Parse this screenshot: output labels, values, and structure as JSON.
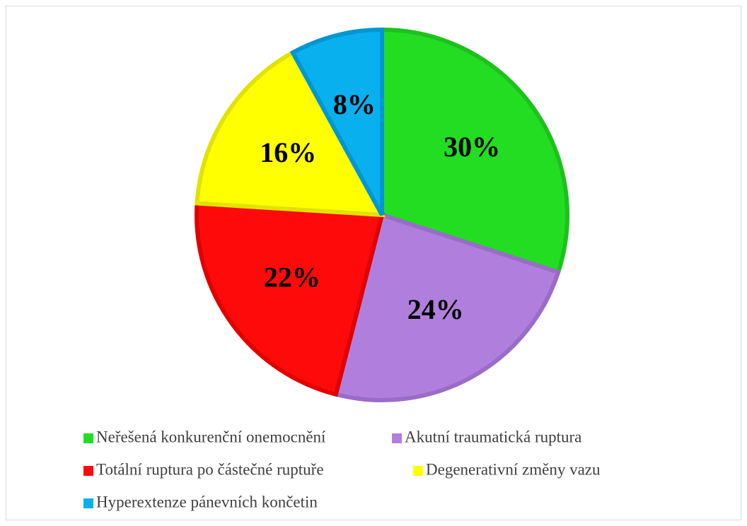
{
  "chart_data": {
    "type": "pie",
    "categories": [
      "Neřešená konkurenční onemocnění",
      "Akutní traumatická ruptura",
      "Totální ruptura po částečné ruptuře",
      "Degenerativní změny vazu",
      "Hyperextenze pánevních končetin"
    ],
    "values": [
      30,
      24,
      22,
      16,
      8
    ],
    "value_labels": [
      "30%",
      "24%",
      "22%",
      "16%",
      "8%"
    ],
    "colors": [
      "#22dd22",
      "#b07fdd",
      "#ff0a0a",
      "#ffff00",
      "#08b0ee"
    ],
    "edge_colors": [
      "#1cc21c",
      "#9a6cc8",
      "#e00000",
      "#e2e200",
      "#0096d2"
    ],
    "legend": "bottom"
  }
}
